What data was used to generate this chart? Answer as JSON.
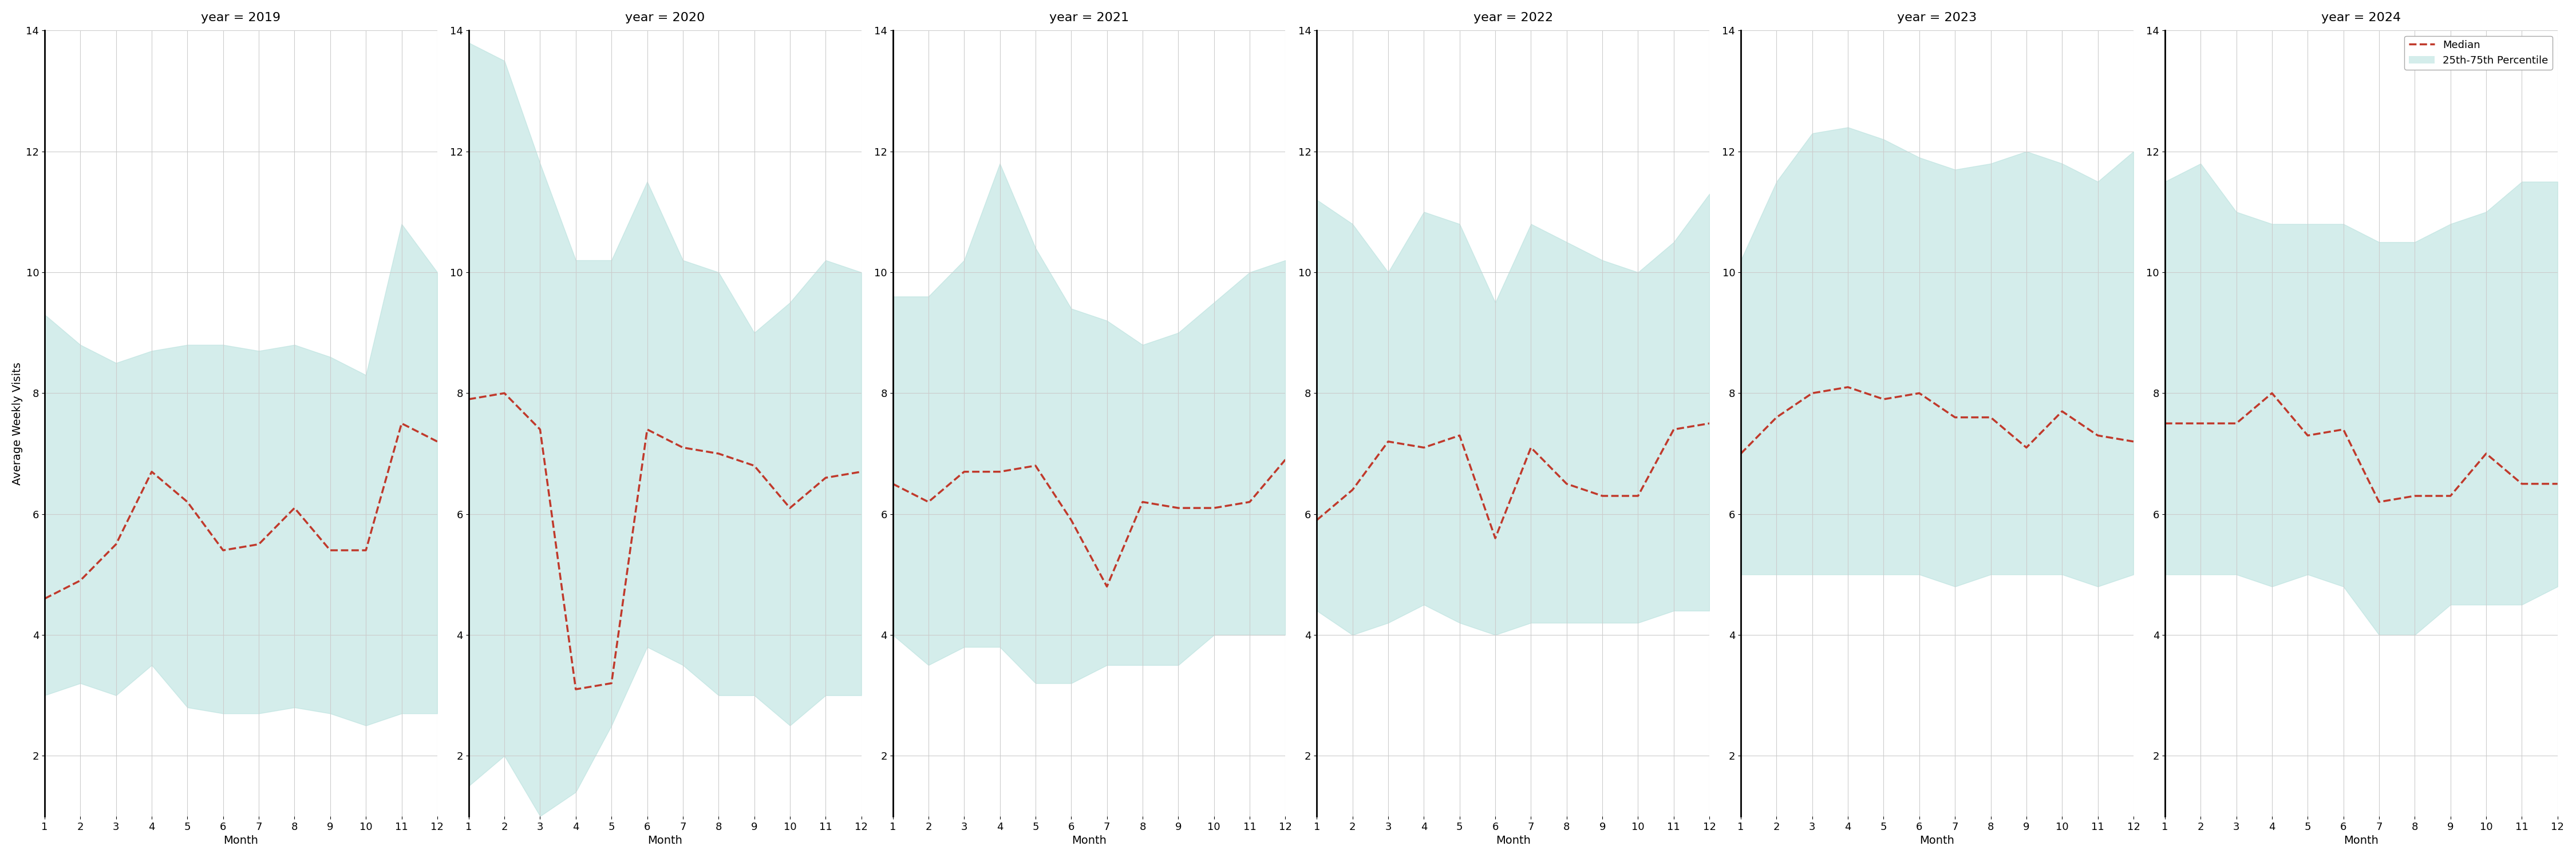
{
  "years": [
    2019,
    2020,
    2021,
    2022,
    2023,
    2024
  ],
  "months": [
    1,
    2,
    3,
    4,
    5,
    6,
    7,
    8,
    9,
    10,
    11,
    12
  ],
  "median": {
    "2019": [
      4.6,
      4.9,
      5.5,
      6.7,
      6.2,
      5.4,
      5.5,
      6.1,
      5.4,
      5.4,
      7.5,
      7.2
    ],
    "2020": [
      7.9,
      8.0,
      7.4,
      3.1,
      3.2,
      7.4,
      7.1,
      7.0,
      6.8,
      6.1,
      6.6,
      6.7
    ],
    "2021": [
      6.5,
      6.2,
      6.7,
      6.7,
      6.8,
      5.9,
      4.8,
      6.2,
      6.1,
      6.1,
      6.2,
      6.9
    ],
    "2022": [
      5.9,
      6.4,
      7.2,
      7.1,
      7.3,
      5.6,
      7.1,
      6.5,
      6.3,
      6.3,
      7.4,
      7.5
    ],
    "2023": [
      7.0,
      7.6,
      8.0,
      8.1,
      7.9,
      8.0,
      7.6,
      7.6,
      7.1,
      7.7,
      7.3,
      7.2
    ],
    "2024": [
      7.5,
      7.5,
      7.5,
      8.0,
      7.3,
      7.4,
      6.2,
      6.3,
      6.3,
      7.0,
      6.5,
      6.5
    ]
  },
  "p25": {
    "2019": [
      3.0,
      3.2,
      3.0,
      3.5,
      2.8,
      2.7,
      2.7,
      2.8,
      2.7,
      2.5,
      2.7,
      2.7
    ],
    "2020": [
      1.5,
      2.0,
      1.0,
      1.4,
      2.5,
      3.8,
      3.5,
      3.0,
      3.0,
      2.5,
      3.0,
      3.0
    ],
    "2021": [
      4.0,
      3.5,
      3.8,
      3.8,
      3.2,
      3.2,
      3.5,
      3.5,
      3.5,
      4.0,
      4.0,
      4.0
    ],
    "2022": [
      4.4,
      4.0,
      4.2,
      4.5,
      4.2,
      4.0,
      4.2,
      4.2,
      4.2,
      4.2,
      4.4,
      4.4
    ],
    "2023": [
      5.0,
      5.0,
      5.0,
      5.0,
      5.0,
      5.0,
      4.8,
      5.0,
      5.0,
      5.0,
      4.8,
      5.0
    ],
    "2024": [
      5.0,
      5.0,
      5.0,
      4.8,
      5.0,
      4.8,
      4.0,
      4.0,
      4.5,
      4.5,
      4.5,
      4.8
    ]
  },
  "p75": {
    "2019": [
      9.3,
      8.8,
      8.5,
      8.7,
      8.8,
      8.8,
      8.7,
      8.8,
      8.6,
      8.3,
      10.8,
      10.0
    ],
    "2020": [
      13.8,
      13.5,
      11.8,
      10.2,
      10.2,
      11.5,
      10.2,
      10.0,
      9.0,
      9.5,
      10.2,
      10.0
    ],
    "2021": [
      9.6,
      9.6,
      10.2,
      11.8,
      10.4,
      9.4,
      9.2,
      8.8,
      9.0,
      9.5,
      10.0,
      10.2
    ],
    "2022": [
      11.2,
      10.8,
      10.0,
      11.0,
      10.8,
      9.5,
      10.8,
      10.5,
      10.2,
      10.0,
      10.5,
      11.3
    ],
    "2023": [
      10.2,
      11.5,
      12.3,
      12.4,
      12.2,
      11.9,
      11.7,
      11.8,
      12.0,
      11.8,
      11.5,
      12.0
    ],
    "2024": [
      11.5,
      11.8,
      11.0,
      10.8,
      10.8,
      10.8,
      10.5,
      10.5,
      10.8,
      11.0,
      11.5,
      11.5
    ]
  },
  "fill_color": "#b2dfdb",
  "fill_alpha": 0.55,
  "line_color": "#c0392b",
  "line_style": "--",
  "line_width": 2.5,
  "ylabel": "Average Weekly Visits",
  "xlabel": "Month",
  "ylim": [
    1,
    14
  ],
  "yticks": [
    2,
    4,
    6,
    8,
    10,
    12,
    14
  ],
  "background_color": "#ffffff",
  "grid_color": "#cccccc",
  "legend_labels": [
    "Median",
    "25th-75th Percentile"
  ],
  "title_fontsize": 16,
  "label_fontsize": 14,
  "tick_fontsize": 13
}
